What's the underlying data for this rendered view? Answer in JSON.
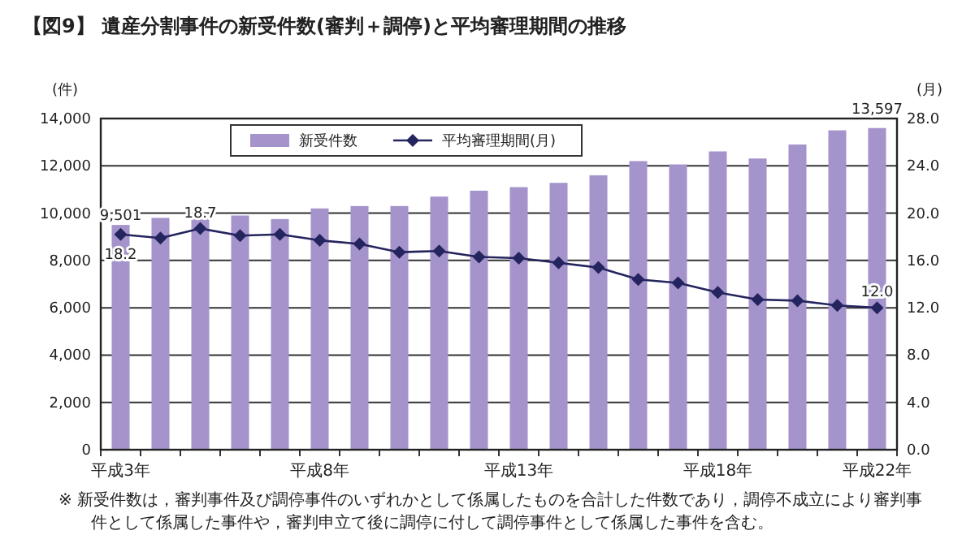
{
  "chart_data": {
    "type": "bar",
    "title": "【図9】 遺産分割事件の新受件数(審判＋調停)と平均審理期間の推移",
    "categories": [
      "平成3年",
      null,
      null,
      null,
      null,
      "平成8年",
      null,
      null,
      null,
      null,
      "平成13年",
      null,
      null,
      null,
      null,
      "平成18年",
      null,
      null,
      null,
      "平成22年"
    ],
    "series": [
      {
        "name": "新受件数",
        "color": "#a593cc",
        "values": [
          9501,
          9800,
          9900,
          9900,
          9750,
          10200,
          10300,
          10300,
          10700,
          10950,
          11100,
          11280,
          11600,
          12200,
          12060,
          12610,
          12310,
          12900,
          13500,
          13597
        ],
        "value_labels": [
          "9,501",
          null,
          null,
          null,
          null,
          null,
          null,
          null,
          null,
          null,
          null,
          null,
          null,
          null,
          null,
          null,
          null,
          null,
          null,
          "13,597"
        ]
      },
      {
        "name": "平均審理期間(月)",
        "type": "line",
        "axis": "y2",
        "color": "#24245e",
        "marker": "diamond",
        "values": [
          18.2,
          17.9,
          18.7,
          18.1,
          18.2,
          17.7,
          17.4,
          16.7,
          16.8,
          16.3,
          16.2,
          15.8,
          15.4,
          14.4,
          14.1,
          13.3,
          12.7,
          12.6,
          12.2,
          12.0
        ],
        "value_labels": [
          "18.2",
          null,
          "18.7",
          null,
          null,
          null,
          null,
          null,
          null,
          null,
          null,
          null,
          null,
          null,
          null,
          null,
          null,
          null,
          null,
          "12.0"
        ]
      }
    ],
    "ylabel": "(件)",
    "y2label": "(月)",
    "ylim": [
      0,
      14000
    ],
    "yticks": [
      0,
      {
        "value": 2000,
        "label": "2,000"
      },
      {
        "value": 4000,
        "label": "4,000"
      },
      {
        "value": 6000,
        "label": "6,000"
      },
      {
        "value": 8000,
        "label": "8,000"
      },
      {
        "value": 10000,
        "label": "10,000"
      },
      {
        "value": 12000,
        "label": "12,000"
      },
      {
        "value": 14000,
        "label": "14,000"
      }
    ],
    "y2lim": [
      0,
      28
    ],
    "y2ticks": [
      {
        "value": 0,
        "label": "0.0"
      },
      {
        "value": 4,
        "label": "4.0"
      },
      {
        "value": 8,
        "label": "8.0"
      },
      {
        "value": 12,
        "label": "12.0"
      },
      {
        "value": 16,
        "label": "16.0"
      },
      {
        "value": 20,
        "label": "20.0"
      },
      {
        "value": 24,
        "label": "24.0"
      },
      {
        "value": 28,
        "label": "28.0"
      }
    ],
    "grid": "y",
    "legend": "top",
    "annotations": [
      "※ 新受件数は，審判事件及び調停事件のいずれかとして係属したものを合計した件数であり，調停不成立により審判事件として係属した事件や，審判申立て後に調停に付して調停事件として係属した事件を含む。"
    ]
  }
}
